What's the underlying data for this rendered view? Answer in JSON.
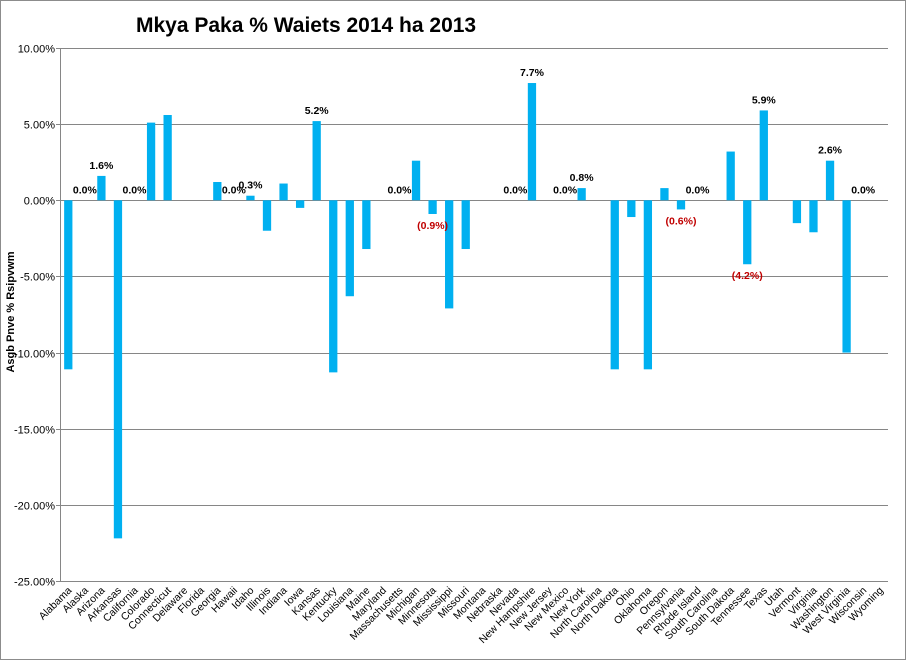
{
  "chart_data": {
    "type": "bar",
    "title": "Mkya Paka % Waiets 2014 ha 2013",
    "xlabel": "",
    "ylabel": "Asgb Pnve % Rsipvwm",
    "ylim": [
      -25,
      10
    ],
    "yticks": [
      "10.00%",
      "5.00%",
      "0.00%",
      "-5.00%",
      "-10.00%",
      "-15.00%",
      "-20.00%",
      "-25.00%"
    ],
    "ytick_values": [
      10,
      5,
      0,
      -5,
      -10,
      -15,
      -20,
      -25
    ],
    "grid": true,
    "categories": [
      "Alabama",
      "Alaska",
      "Arizona",
      "Arkansas",
      "California",
      "Colorado",
      "Connecticut",
      "Delaware",
      "Florida",
      "Georgia",
      "Hawaii",
      "Idaho",
      "Illinois",
      "Indiana",
      "Iowa",
      "Kansas",
      "Kentucky",
      "Louisiana",
      "Maine",
      "Maryland",
      "Massachusetts",
      "Michigan",
      "Minnesota",
      "Mississippi",
      "Missouri",
      "Montana",
      "Nebraska",
      "Nevada",
      "New Hampshire",
      "New Jersey",
      "New Mexico",
      "New York",
      "North Carolina",
      "North Dakota",
      "Ohio",
      "Oklahoma",
      "Oregon",
      "Pennsylvania",
      "Rhode Island",
      "South Carolina",
      "South Dakota",
      "Tennessee",
      "Texas",
      "Utah",
      "Vermont",
      "Virginia",
      "Washington",
      "West Virginia",
      "Wisconsin",
      "Wyoming"
    ],
    "values": [
      -11.1,
      0,
      1.6,
      -22.2,
      0,
      5.1,
      5.6,
      0,
      0,
      1.2,
      0,
      0.3,
      -2.0,
      1.1,
      -0.5,
      5.2,
      -11.3,
      -6.3,
      -3.2,
      0,
      0,
      2.6,
      -0.9,
      -7.1,
      -3.2,
      0,
      0,
      0,
      7.7,
      0,
      0,
      0.8,
      0,
      -11.1,
      -1.1,
      -11.1,
      0.8,
      -0.6,
      0,
      0,
      3.2,
      -4.2,
      5.9,
      0,
      -1.5,
      -2.1,
      2.6,
      -10.0,
      0,
      0
    ],
    "data_labels": [
      {
        "category": "Alaska",
        "text": "0.0%",
        "color": "#000000"
      },
      {
        "category": "Arizona",
        "text": "1.6%",
        "color": "#000000"
      },
      {
        "category": "California",
        "text": "0.0%",
        "color": "#000000"
      },
      {
        "category": "Hawaii",
        "text": "0.0%",
        "color": "#000000"
      },
      {
        "category": "Idaho",
        "text": "0.3%",
        "color": "#000000"
      },
      {
        "category": "Kansas",
        "text": "5.2%",
        "color": "#000000"
      },
      {
        "category": "Massachusetts",
        "text": "0.0%",
        "color": "#000000"
      },
      {
        "category": "Minnesota",
        "text": "(0.9%)",
        "color": "#c00000"
      },
      {
        "category": "Nevada",
        "text": "0.0%",
        "color": "#000000"
      },
      {
        "category": "New Hampshire",
        "text": "7.7%",
        "color": "#000000"
      },
      {
        "category": "New Mexico",
        "text": "0.0%",
        "color": "#000000"
      },
      {
        "category": "New York",
        "text": "0.8%",
        "color": "#000000"
      },
      {
        "category": "Pennsylvania",
        "text": "(0.6%)",
        "color": "#c00000"
      },
      {
        "category": "Rhode Island",
        "text": "0.0%",
        "color": "#000000"
      },
      {
        "category": "Tennessee",
        "text": "(4.2%)",
        "color": "#c00000"
      },
      {
        "category": "Texas",
        "text": "5.9%",
        "color": "#000000"
      },
      {
        "category": "Washington",
        "text": "2.6%",
        "color": "#000000"
      },
      {
        "category": "Wisconsin",
        "text": "0.0%",
        "color": "#000000"
      }
    ],
    "bar_color": "#00b0f0",
    "grid_color": "#868686"
  }
}
